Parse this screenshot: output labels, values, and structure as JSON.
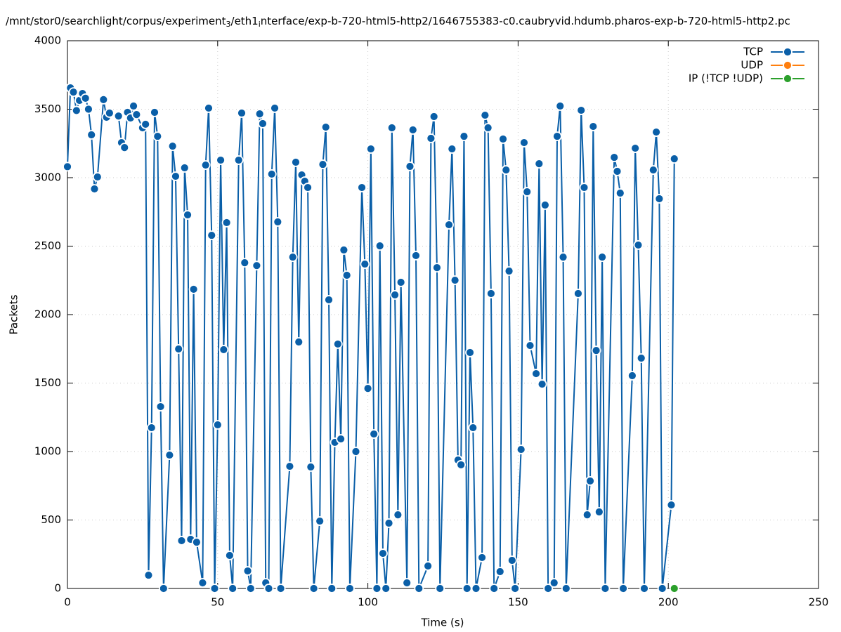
{
  "chart_data": {
    "type": "line",
    "title_parts": [
      "/mnt/stor0/searchlight/corpus/experiment",
      "3",
      "/eth1",
      "i",
      "nterface/exp-b-720-html5-http2/1646755383-c0.caubryvid.hdumb.pharos-exp-b-720-html5-http2.pc"
    ],
    "x_label": "Time (s)",
    "y_label": "Packets",
    "xlim": [
      0,
      250
    ],
    "xticks": [
      0,
      50,
      100,
      150,
      200,
      250
    ],
    "ylim": [
      0,
      4000
    ],
    "yticks": [
      0,
      500,
      1000,
      1500,
      2000,
      2500,
      3000,
      3500,
      4000
    ],
    "grid": true,
    "legend": "top-right",
    "series": [
      {
        "name": "TCP",
        "color": "#0a5fa8",
        "x": [
          0,
          1,
          2,
          3,
          4,
          5,
          6,
          7,
          8,
          9,
          10,
          12,
          13,
          14,
          17,
          18,
          19,
          20,
          21,
          22,
          23,
          25,
          26,
          27,
          28,
          29,
          30,
          31,
          32,
          34,
          35,
          36,
          37,
          38,
          39,
          40,
          41,
          42,
          43,
          45,
          46,
          47,
          48,
          49,
          50,
          51,
          52,
          53,
          54,
          55,
          57,
          58,
          59,
          60,
          61,
          63,
          64,
          65,
          66,
          67,
          68,
          69,
          70,
          71,
          74,
          75,
          76,
          77,
          78,
          79,
          80,
          81,
          82,
          84,
          85,
          86,
          87,
          88,
          89,
          90,
          91,
          92,
          93,
          94,
          96,
          98,
          99,
          100,
          101,
          102,
          103,
          104,
          105,
          106,
          107,
          108,
          109,
          110,
          111,
          113,
          114,
          115,
          116,
          117,
          120,
          121,
          122,
          123,
          124,
          127,
          128,
          129,
          130,
          131,
          132,
          133,
          134,
          135,
          136,
          138,
          139,
          140,
          141,
          142,
          144,
          145,
          146,
          147,
          148,
          149,
          151,
          152,
          153,
          154,
          156,
          157,
          158,
          159,
          160,
          162,
          163,
          164,
          165,
          166,
          170,
          171,
          172,
          173,
          174,
          175,
          176,
          177,
          178,
          179,
          182,
          183,
          184,
          185,
          188,
          189,
          190,
          191,
          192,
          195,
          196,
          197,
          198,
          201,
          202
        ],
        "values": [
          3080,
          3656,
          3625,
          3490,
          3564,
          3615,
          3580,
          3500,
          3313,
          2918,
          3005,
          3570,
          3441,
          3472,
          3450,
          3256,
          3220,
          3477,
          3436,
          3523,
          3461,
          3364,
          3390,
          97,
          1174,
          3477,
          3302,
          1328,
          0,
          974,
          3230,
          3010,
          1749,
          349,
          3072,
          2728,
          359,
          2185,
          338,
          41,
          3092,
          3508,
          2579,
          0,
          1195,
          3128,
          1744,
          2672,
          241,
          0,
          3128,
          3472,
          2379,
          128,
          0,
          2358,
          3466,
          3395,
          41,
          0,
          3026,
          3508,
          2677,
          0,
          892,
          2420,
          3113,
          1800,
          3020,
          2974,
          2928,
          887,
          0,
          492,
          3097,
          3369,
          2108,
          0,
          1067,
          1785,
          1092,
          2472,
          2287,
          0,
          1000,
          2928,
          2369,
          1461,
          3210,
          1128,
          0,
          2502,
          256,
          0,
          477,
          3364,
          2144,
          538,
          2236,
          41,
          3082,
          3349,
          2431,
          0,
          164,
          3287,
          3446,
          2343,
          0,
          2656,
          3210,
          2251,
          938,
          903,
          3302,
          0,
          1723,
          1174,
          0,
          226,
          3456,
          3364,
          2154,
          0,
          123,
          3282,
          3056,
          2318,
          205,
          0,
          1015,
          3256,
          2897,
          1774,
          1569,
          3102,
          1492,
          2800,
          0,
          41,
          3302,
          3523,
          2420,
          0,
          2154,
          3492,
          2928,
          538,
          785,
          3374,
          1738,
          559,
          2420,
          0,
          3148,
          3046,
          2887,
          0,
          1554,
          3215,
          2508,
          1682,
          0,
          3056,
          3333,
          2846,
          0,
          610,
          3138
        ]
      },
      {
        "name": "UDP",
        "color": "#ff7f0e",
        "x": [],
        "values": []
      },
      {
        "name": "IP (!TCP  !UDP)",
        "color": "#2ca02c",
        "x": [
          202
        ],
        "values": [
          0
        ]
      }
    ]
  }
}
